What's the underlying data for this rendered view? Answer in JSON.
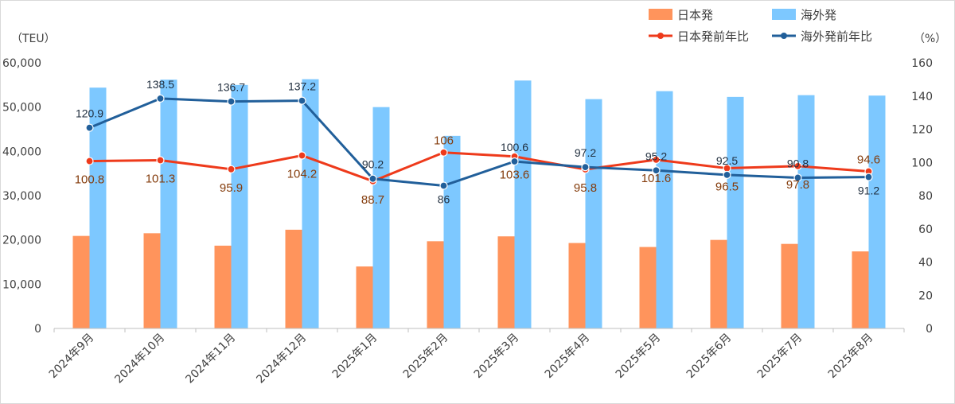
{
  "chart_data": {
    "type": "bar",
    "categories": [
      "2024年9月",
      "2024年10月",
      "2024年11月",
      "2024年12月",
      "2025年1月",
      "2025年2月",
      "2025年3月",
      "2025年4月",
      "2025年5月",
      "2025年6月",
      "2025年7月",
      "2025年8月"
    ],
    "bar_series": [
      {
        "name": "日本発",
        "color": "#ff945c",
        "values": [
          20900,
          21500,
          18700,
          22300,
          14000,
          19700,
          20800,
          19300,
          18400,
          20000,
          19100,
          17400
        ]
      },
      {
        "name": "海外発",
        "color": "#7dc8ff",
        "values": [
          54400,
          56200,
          55000,
          56300,
          50000,
          43500,
          56000,
          51800,
          53600,
          52300,
          52700,
          52600
        ]
      }
    ],
    "line_series": [
      {
        "name": "日本発前年比",
        "color": "#ee3a1b",
        "values": [
          100.8,
          101.3,
          95.9,
          104.2,
          88.7,
          106,
          103.6,
          95.8,
          101.6,
          96.5,
          97.8,
          94.6
        ],
        "labels": [
          "100.8",
          "101.3",
          "95.9",
          "104.2",
          "88.7",
          "106",
          "103.6",
          "95.8",
          "101.6",
          "96.5",
          "97.8",
          "94.6"
        ]
      },
      {
        "name": "海外発前年比",
        "color": "#215f9a",
        "values": [
          120.9,
          138.5,
          136.7,
          137.2,
          90.2,
          86,
          100.6,
          97.2,
          95.2,
          92.5,
          90.8,
          91.2
        ],
        "labels": [
          "120.9",
          "138.5",
          "136.7",
          "137.2",
          "90.2",
          "86",
          "100.6",
          "97.2",
          "95.2",
          "92.5",
          "90.8",
          "91.2"
        ]
      }
    ],
    "y_left": {
      "unit": "（TEU）",
      "ylim": [
        0,
        60000
      ],
      "ticks": [
        "0",
        "10,000",
        "20,000",
        "30,000",
        "40,000",
        "50,000",
        "60,000"
      ]
    },
    "y_right": {
      "unit": "（%）",
      "ylim": [
        0,
        160
      ],
      "ticks": [
        "0",
        "20",
        "40",
        "60",
        "80",
        "100",
        "120",
        "140",
        "160"
      ]
    },
    "legend_position": "top-right",
    "grid": false
  }
}
